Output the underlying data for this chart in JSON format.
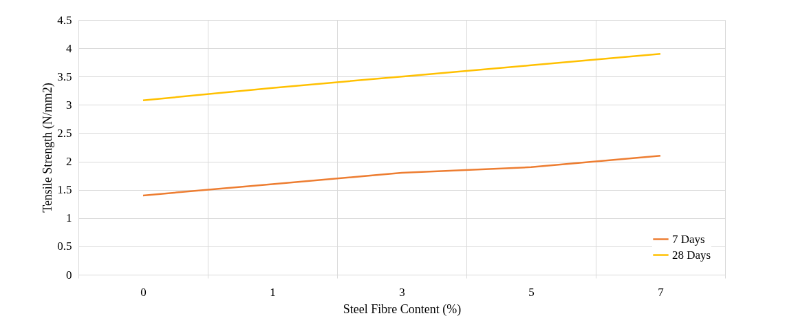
{
  "chart_data": {
    "type": "line",
    "xlabel": "Steel Fibre Content (%)",
    "ylabel": "Tensile Strength (N/mm2)",
    "categories": [
      "0",
      "1",
      "3",
      "5",
      "7"
    ],
    "series": [
      {
        "name": "7 Days",
        "color": "#ed7d31",
        "values": [
          1.4,
          1.6,
          1.8,
          1.9,
          2.1
        ]
      },
      {
        "name": "28 Days",
        "color": "#ffc000",
        "values": [
          3.08,
          3.3,
          3.5,
          3.7,
          3.9
        ]
      }
    ],
    "ylim": [
      0,
      4.5
    ],
    "yticks": [
      0,
      0.5,
      1,
      1.5,
      2,
      2.5,
      3,
      3.5,
      4,
      4.5
    ],
    "grid": true,
    "legend": "bottom right",
    "marker": "none",
    "line_style": "solid"
  }
}
